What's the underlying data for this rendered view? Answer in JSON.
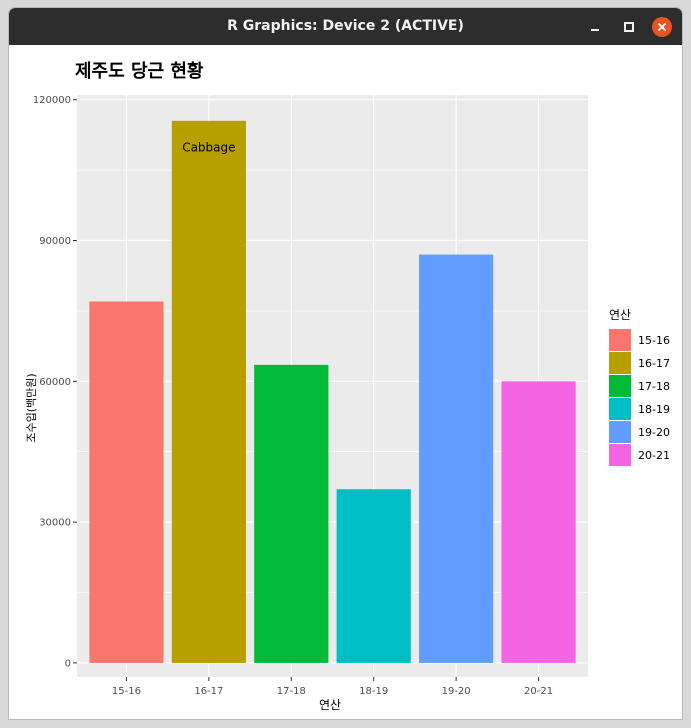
{
  "window": {
    "title": "R Graphics: Device 2 (ACTIVE)",
    "buttons": {
      "minimize": "minimize-icon",
      "maximize": "maximize-icon",
      "close": "close-icon"
    },
    "close_color": "#e95420"
  },
  "chart_data": {
    "type": "bar",
    "title": "제주도 당근 현황",
    "xlabel": "연산",
    "ylabel": "조수입(백만원)",
    "categories": [
      "15-16",
      "16-17",
      "17-18",
      "18-19",
      "19-20",
      "20-21"
    ],
    "values": [
      77000,
      115500,
      63500,
      37000,
      87000,
      60000
    ],
    "colors": [
      "#F8766D",
      "#B79F00",
      "#00BA38",
      "#00BFC4",
      "#619CFF",
      "#F564E3"
    ],
    "yticks": [
      0,
      30000,
      60000,
      90000,
      120000
    ],
    "ytick_labels": [
      "0",
      "30000",
      "60000",
      "90000",
      "120000"
    ],
    "ylim": [
      -3000,
      121000
    ],
    "grid": true,
    "panel_background": "#EBEBEB",
    "legend": {
      "title": "연산",
      "placement": "right",
      "entries": [
        "15-16",
        "16-17",
        "17-18",
        "18-19",
        "19-20",
        "20-21"
      ]
    },
    "annotations": [
      {
        "text": "Cabbage",
        "category": "16-17",
        "y": 109000
      }
    ]
  }
}
